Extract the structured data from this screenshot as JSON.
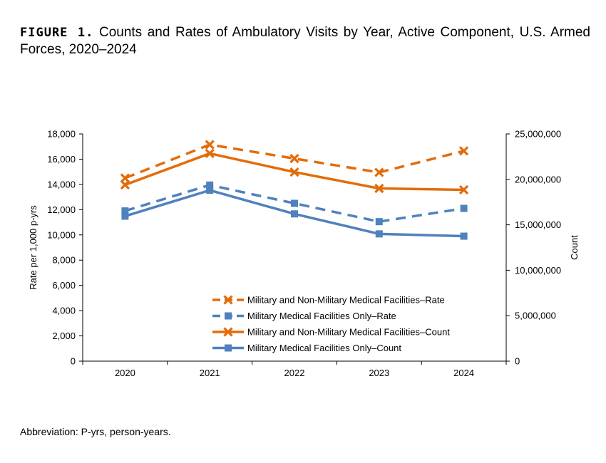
{
  "figure": {
    "label": "FIGURE 1.",
    "title": "Counts and Rates of Ambulatory Visits by Year, Active Component, U.S. Armed Forces, 2020–2024"
  },
  "footnote": "Abbreviation: P-yrs, person-years.",
  "chart_data": {
    "type": "line",
    "categories": [
      "2020",
      "2021",
      "2022",
      "2023",
      "2024"
    ],
    "y_left": {
      "label": "Rate per 1,000 p-yrs",
      "range": [
        0,
        18000
      ],
      "ticks": [
        0,
        2000,
        4000,
        6000,
        8000,
        10000,
        12000,
        14000,
        16000,
        18000
      ],
      "tick_labels": [
        "0",
        "2,000",
        "4,000",
        "6,000",
        "8,000",
        "10,000",
        "12,000",
        "14,000",
        "16,000",
        "18,000"
      ]
    },
    "y_right": {
      "label": "Count",
      "range": [
        0,
        25000000
      ],
      "ticks": [
        0,
        5000000,
        10000000,
        15000000,
        20000000,
        25000000
      ],
      "tick_labels": [
        "0",
        "5,000,000",
        "10,000,000",
        "15,000,000",
        "20,000,000",
        "25,000,000"
      ]
    },
    "series": [
      {
        "name": "Military and Non-Military Medical Facilities–Rate",
        "axis": "left",
        "color": "#E36C0A",
        "dash": true,
        "marker": "x",
        "values": [
          14500,
          17150,
          16050,
          14950,
          16650
        ]
      },
      {
        "name": "Military Medical Facilities Only–Rate",
        "axis": "left",
        "color": "#4F81BD",
        "dash": true,
        "marker": "square",
        "values": [
          11900,
          13950,
          12500,
          11050,
          12100
        ]
      },
      {
        "name": "Military and Non-Military Medical Facilities–Count",
        "axis": "right",
        "color": "#E36C0A",
        "dash": false,
        "marker": "x",
        "values": [
          19400000,
          22850000,
          20800000,
          19000000,
          18850000
        ]
      },
      {
        "name": "Military Medical Facilities Only–Count",
        "axis": "right",
        "color": "#4F81BD",
        "dash": false,
        "marker": "square",
        "values": [
          15950000,
          18800000,
          16200000,
          14000000,
          13750000
        ]
      }
    ],
    "legend_position": "inside-bottom-right"
  }
}
